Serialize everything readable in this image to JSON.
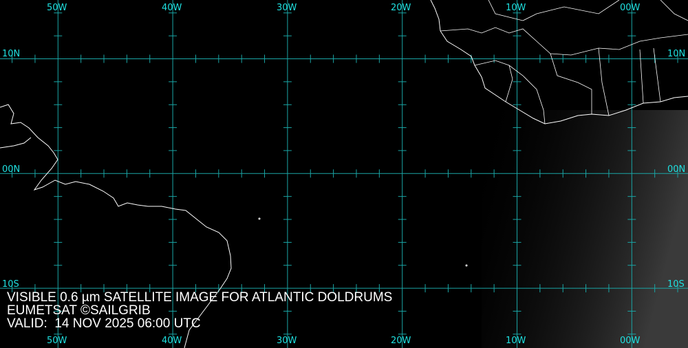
{
  "map": {
    "longitude_labels": [
      "50W",
      "40W",
      "30W",
      "20W",
      "10W",
      "00W"
    ],
    "latitude_labels": [
      "10N",
      "00N",
      "10S"
    ],
    "colors": {
      "grid": "#1aa6a6",
      "labels": "#1fe0e0",
      "coastline": "#ffffff",
      "background": "#000000"
    }
  },
  "caption": {
    "line1": "VISIBLE 0.6 µm SATELLITE IMAGE FOR ATLANTIC DOLDRUMS",
    "line2": "EUMETSAT ©SAILGRIB",
    "line3": "VALID:  14 NOV 2025 06:00 UTC"
  }
}
